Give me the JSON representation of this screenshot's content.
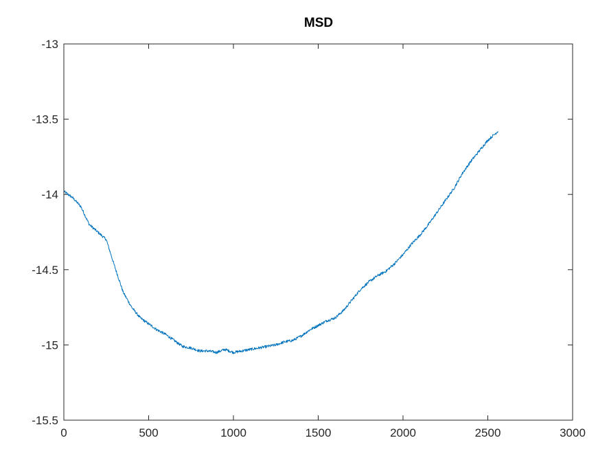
{
  "chart_data": {
    "type": "line",
    "title": "MSD",
    "xlabel": "",
    "ylabel": "",
    "xlim": [
      0,
      3000
    ],
    "ylim": [
      -15.5,
      -13
    ],
    "x_ticks": [
      0,
      500,
      1000,
      1500,
      2000,
      2500,
      3000
    ],
    "x_tick_labels": [
      "0",
      "500",
      "1000",
      "1500",
      "2000",
      "2500",
      "3000"
    ],
    "y_ticks": [
      -13,
      -13.5,
      -14,
      -14.5,
      -15,
      -15.5
    ],
    "y_tick_labels": [
      "-13",
      "-13.5",
      "-14",
      "-14.5",
      "-15",
      "-15.5"
    ],
    "grid": false,
    "line_color": "#0072bd",
    "series": [
      {
        "x": [
          0,
          50,
          100,
          150,
          200,
          250,
          300,
          350,
          400,
          450,
          500,
          550,
          600,
          650,
          700,
          750,
          800,
          850,
          900,
          950,
          1000,
          1050,
          1100,
          1150,
          1200,
          1250,
          1300,
          1350,
          1400,
          1450,
          1500,
          1550,
          1600,
          1650,
          1700,
          1750,
          1800,
          1850,
          1900,
          1950,
          2000,
          2050,
          2100,
          2150,
          2200,
          2250,
          2300,
          2350,
          2400,
          2450,
          2500,
          2560
        ],
        "y": [
          -13.98,
          -14.02,
          -14.08,
          -14.2,
          -14.25,
          -14.3,
          -14.48,
          -14.65,
          -14.75,
          -14.82,
          -14.86,
          -14.9,
          -14.93,
          -14.97,
          -15.01,
          -15.02,
          -15.04,
          -15.04,
          -15.05,
          -15.03,
          -15.05,
          -15.04,
          -15.03,
          -15.02,
          -15.01,
          -15.0,
          -14.98,
          -14.97,
          -14.94,
          -14.9,
          -14.87,
          -14.84,
          -14.82,
          -14.77,
          -14.7,
          -14.63,
          -14.58,
          -14.54,
          -14.51,
          -14.46,
          -14.4,
          -14.33,
          -14.27,
          -14.2,
          -14.12,
          -14.04,
          -13.96,
          -13.86,
          -13.78,
          -13.71,
          -13.64,
          -13.58
        ]
      }
    ]
  }
}
